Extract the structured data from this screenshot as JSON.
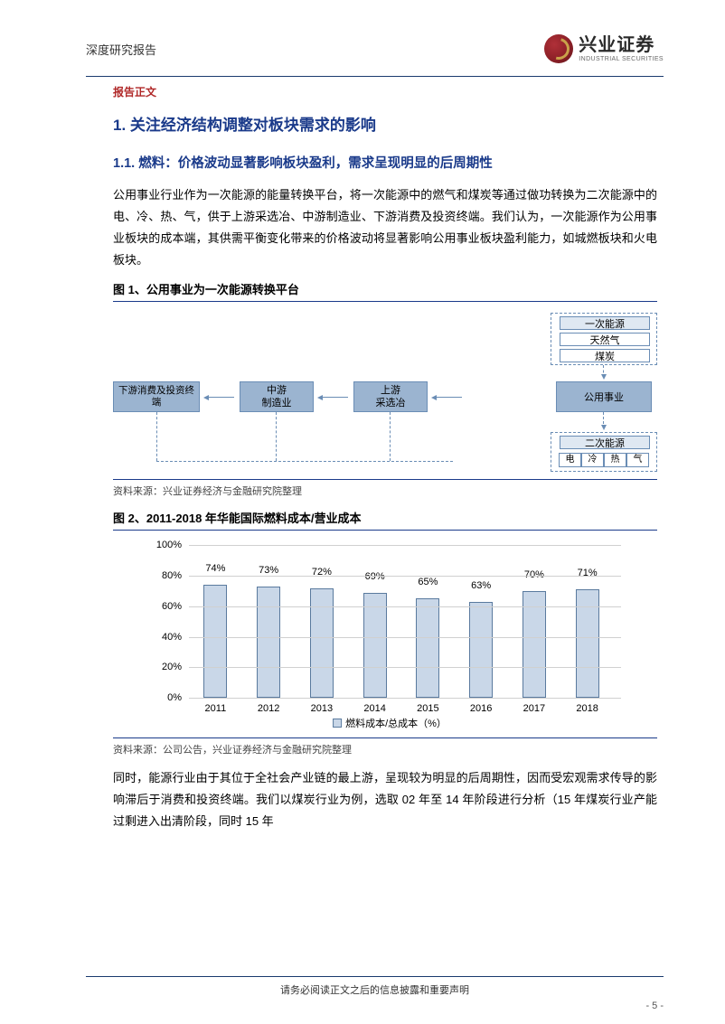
{
  "header": {
    "left": "深度研究报告",
    "logo_cn": "兴业证券",
    "logo_en": "INDUSTRIAL SECURITIES"
  },
  "section_label": "报告正文",
  "h1": "1.  关注经济结构调整对板块需求的影响",
  "h2": "1.1.  燃料：价格波动显著影响板块盈利，需求呈现明显的后周期性",
  "para1": "公用事业行业作为一次能源的能量转换平台，将一次能源中的燃气和煤炭等通过做功转换为二次能源中的电、冷、热、气，供于上游采选冶、中游制造业、下游消费及投资终端。我们认为，一次能源作为公用事业板块的成本端，其供需平衡变化带来的价格波动将显著影响公用事业板块盈利能力，如城燃板块和火电板块。",
  "fig1": {
    "title": "图 1、公用事业为一次能源转换平台",
    "source": "资料来源：兴业证券经济与金融研究院整理",
    "nodes": {
      "primary_energy_group": "一次能源",
      "natural_gas": "天然气",
      "coal": "煤炭",
      "downstream": "下游消费及投资终端",
      "midstream": "中游\n制造业",
      "upstream": "上游\n采选冶",
      "public_utility": "公用事业",
      "secondary_energy": "二次能源",
      "sub": [
        "电",
        "冷",
        "热",
        "气"
      ]
    }
  },
  "fig2": {
    "title": "图 2、2011-2018 年华能国际燃料成本/营业成本",
    "source": "资料来源：公司公告，兴业证券经济与金融研究院整理",
    "type": "bar",
    "ylim": [
      0,
      100
    ],
    "ytick_step": 20,
    "ytick_labels": [
      "0%",
      "20%",
      "40%",
      "60%",
      "80%",
      "100%"
    ],
    "categories": [
      "2011",
      "2012",
      "2013",
      "2014",
      "2015",
      "2016",
      "2017",
      "2018"
    ],
    "values": [
      74,
      73,
      72,
      69,
      65,
      63,
      70,
      71
    ],
    "value_labels": [
      "74%",
      "73%",
      "72%",
      "69%",
      "65%",
      "63%",
      "70%",
      "71%"
    ],
    "bar_fill": "#c9d7e8",
    "bar_border": "#5a7a9e",
    "grid_color": "#d0d0d0",
    "legend": "燃料成本/总成本（%）"
  },
  "para2": "同时，能源行业由于其位于全社会产业链的最上游，呈现较为明显的后周期性，因而受宏观需求传导的影响滞后于消费和投资终端。我们以煤炭行业为例，选取 02 年至 14 年阶段进行分析（15 年煤炭行业产能过剩进入出清阶段，同时 15 年",
  "footer": "请务必阅读正文之后的信息披露和重要声明",
  "page_no": "- 5 -"
}
